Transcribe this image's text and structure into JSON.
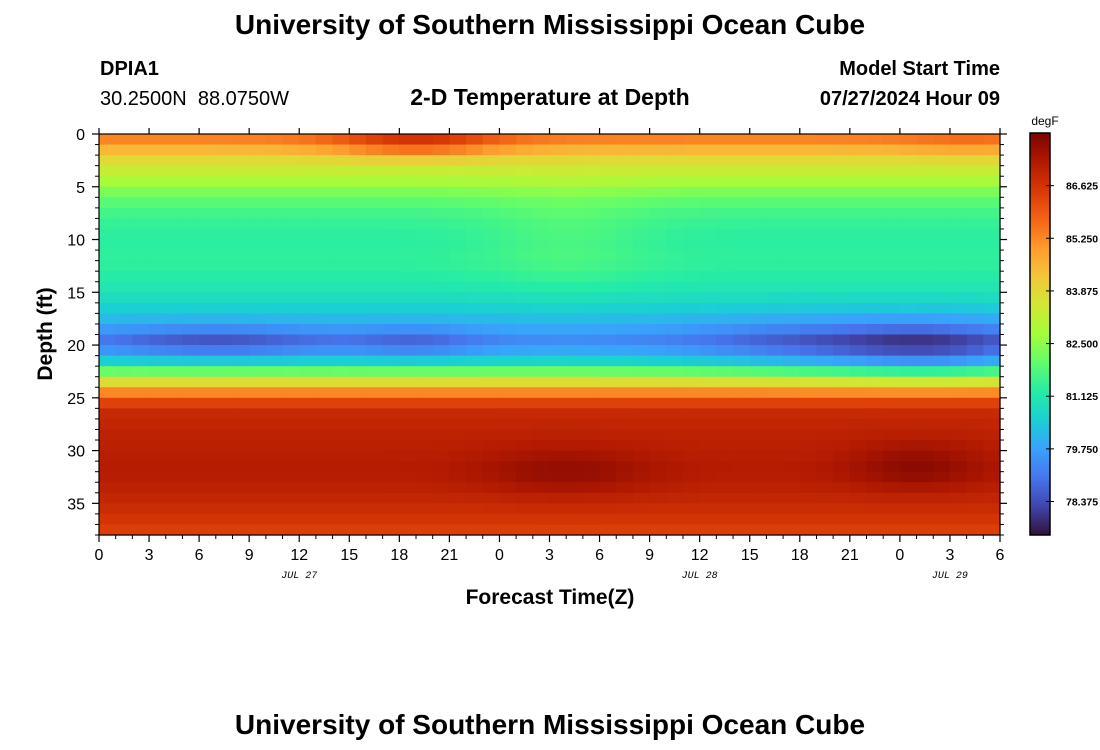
{
  "header": {
    "title": "University of Southern Mississippi Ocean Cube",
    "station_id": "DPIA1",
    "station_coords": "30.2500N  88.0750W",
    "subtitle": "2-D Temperature at Depth",
    "model_start_label": "Model Start Time",
    "model_start_value": "07/27/2024 Hour 09"
  },
  "footer": {
    "title": "University of Southern Mississippi Ocean Cube"
  },
  "chart_data": {
    "type": "heatmap",
    "title": "2-D Temperature at Depth",
    "xlabel": "Forecast Time(Z)",
    "ylabel": "Depth (ft)",
    "x_range_hours": [
      0,
      54
    ],
    "x_tick_step_hours": 3,
    "x_tick_labels": [
      "0",
      "3",
      "6",
      "9",
      "12",
      "15",
      "18",
      "21",
      "0",
      "3",
      "6",
      "9",
      "12",
      "15",
      "18",
      "21",
      "0",
      "3",
      "6"
    ],
    "date_labels": [
      {
        "hour": 12,
        "text": "JUL 27"
      },
      {
        "hour": 36,
        "text": "JUL 28"
      },
      {
        "hour": 51,
        "text": "JUL 29"
      }
    ],
    "y_range_ft": [
      0,
      38
    ],
    "y_tick_values": [
      0,
      5,
      10,
      15,
      20,
      25,
      30,
      35
    ],
    "y_tick_labels": [
      "0",
      "5",
      "10",
      "15",
      "20",
      "25",
      "30",
      "35"
    ],
    "colorbar": {
      "unit": "degF",
      "vmin": 77.5,
      "vmax": 88.0,
      "tick_values": [
        78.375,
        79.75,
        81.125,
        82.5,
        83.875,
        85.25,
        86.625
      ],
      "tick_labels": [
        "78.375",
        "79.750",
        "81.125",
        "82.500",
        "83.875",
        "85.250",
        "86.625"
      ],
      "colors": [
        "#30123b",
        "#4145ab",
        "#4675ed",
        "#39a2fc",
        "#1bcfd4",
        "#24eca6",
        "#61fc6c",
        "#a4fc3b",
        "#d1e834",
        "#f3c63a",
        "#fe9b2d",
        "#f36315",
        "#d93806",
        "#b11901",
        "#7a0402"
      ]
    },
    "depth_profile": {
      "depth_ft": [
        0,
        1,
        2,
        3,
        4,
        5,
        6,
        8,
        10,
        12,
        14,
        16,
        18,
        19.5,
        21,
        22,
        23,
        24,
        25,
        26,
        28,
        30,
        32,
        34,
        36,
        38
      ],
      "temp_degF": [
        85.7,
        84.9,
        84.1,
        83.5,
        83.1,
        82.6,
        82.0,
        81.5,
        81.3,
        81.4,
        81.2,
        80.7,
        80.0,
        79.4,
        80.1,
        81.2,
        83.0,
        84.6,
        85.9,
        86.8,
        87.0,
        87.1,
        87.2,
        87.0,
        86.7,
        86.3
      ]
    },
    "temporal_anomalies": [
      {
        "hour": 19,
        "depth_ft": 0.8,
        "delta_degF": 1.4,
        "hour_width": 5,
        "depth_width": 1.3
      },
      {
        "hour": 52,
        "depth_ft": 0.8,
        "delta_degF": 0.3,
        "hour_width": 4,
        "depth_width": 1.5
      },
      {
        "hour": 7,
        "depth_ft": 19.8,
        "delta_degF": -0.9,
        "hour_width": 7,
        "depth_width": 1.6
      },
      {
        "hour": 19,
        "depth_ft": 19.8,
        "delta_degF": -0.6,
        "hour_width": 4,
        "depth_width": 1.6
      },
      {
        "hour": 42,
        "depth_ft": 20.0,
        "delta_degF": -0.7,
        "hour_width": 7,
        "depth_width": 2.5
      },
      {
        "hour": 50,
        "depth_ft": 20.3,
        "delta_degF": -1.3,
        "hour_width": 6,
        "depth_width": 2.5
      },
      {
        "hour": 28,
        "depth_ft": 10.0,
        "delta_degF": 0.4,
        "hour_width": 5,
        "depth_width": 5.0
      },
      {
        "hour": 28,
        "depth_ft": 32.0,
        "delta_degF": 0.5,
        "hour_width": 5,
        "depth_width": 2.3
      },
      {
        "hour": 49,
        "depth_ft": 31.5,
        "delta_degF": 0.6,
        "hour_width": 4,
        "depth_width": 2.3
      }
    ]
  }
}
